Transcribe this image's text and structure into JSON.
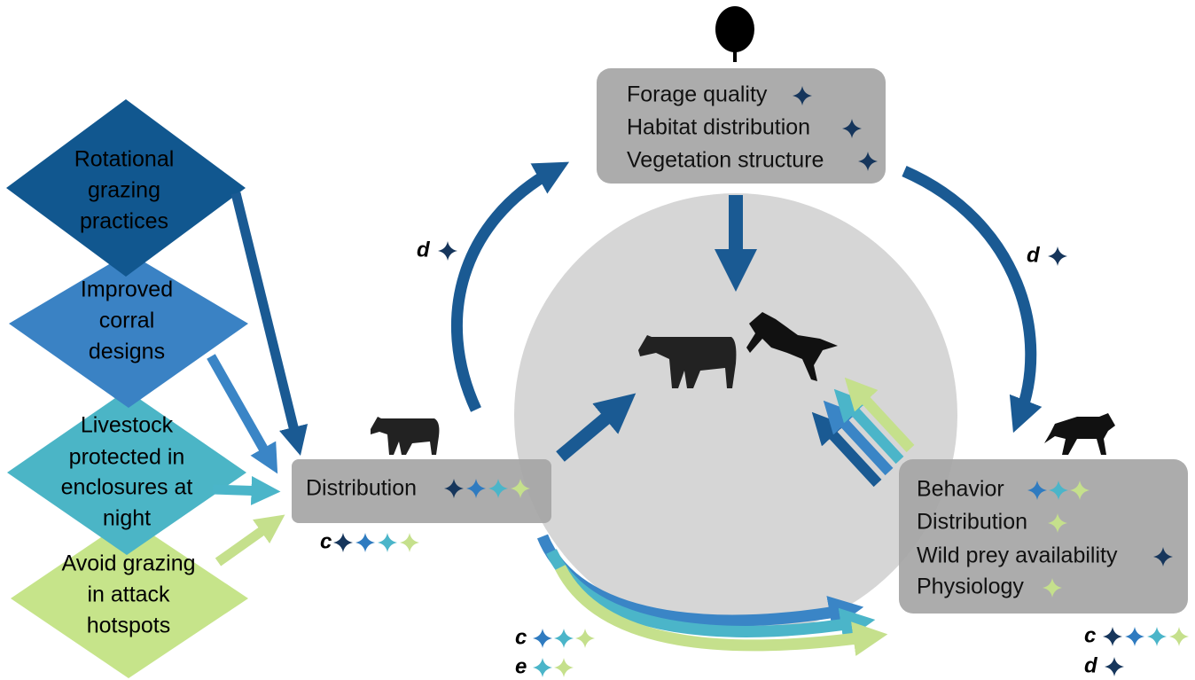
{
  "strategies": [
    {
      "lines": [
        "Rotational",
        "grazing",
        "practices"
      ]
    },
    {
      "lines": [
        "Improved",
        "corral",
        "designs"
      ]
    },
    {
      "lines": [
        "Livestock",
        "protected in",
        "enclosures at",
        "night"
      ]
    },
    {
      "lines": [
        "Avoid grazing",
        "in attack",
        "hotspots"
      ]
    }
  ],
  "boxes": {
    "top": {
      "items": [
        "Forage quality",
        "Habitat distribution",
        "Vegetation structure"
      ]
    },
    "left": {
      "items": [
        "Distribution"
      ]
    },
    "right": {
      "items": [
        "Behavior",
        "Distribution",
        "Wild prey availability",
        "Physiology"
      ]
    }
  },
  "labels": {
    "left_arrow": "d",
    "right_arrow": "d",
    "left_box": "c",
    "bottom_c": "c",
    "bottom_e": "e",
    "right_box_c": "c",
    "right_box_d": "d"
  }
}
